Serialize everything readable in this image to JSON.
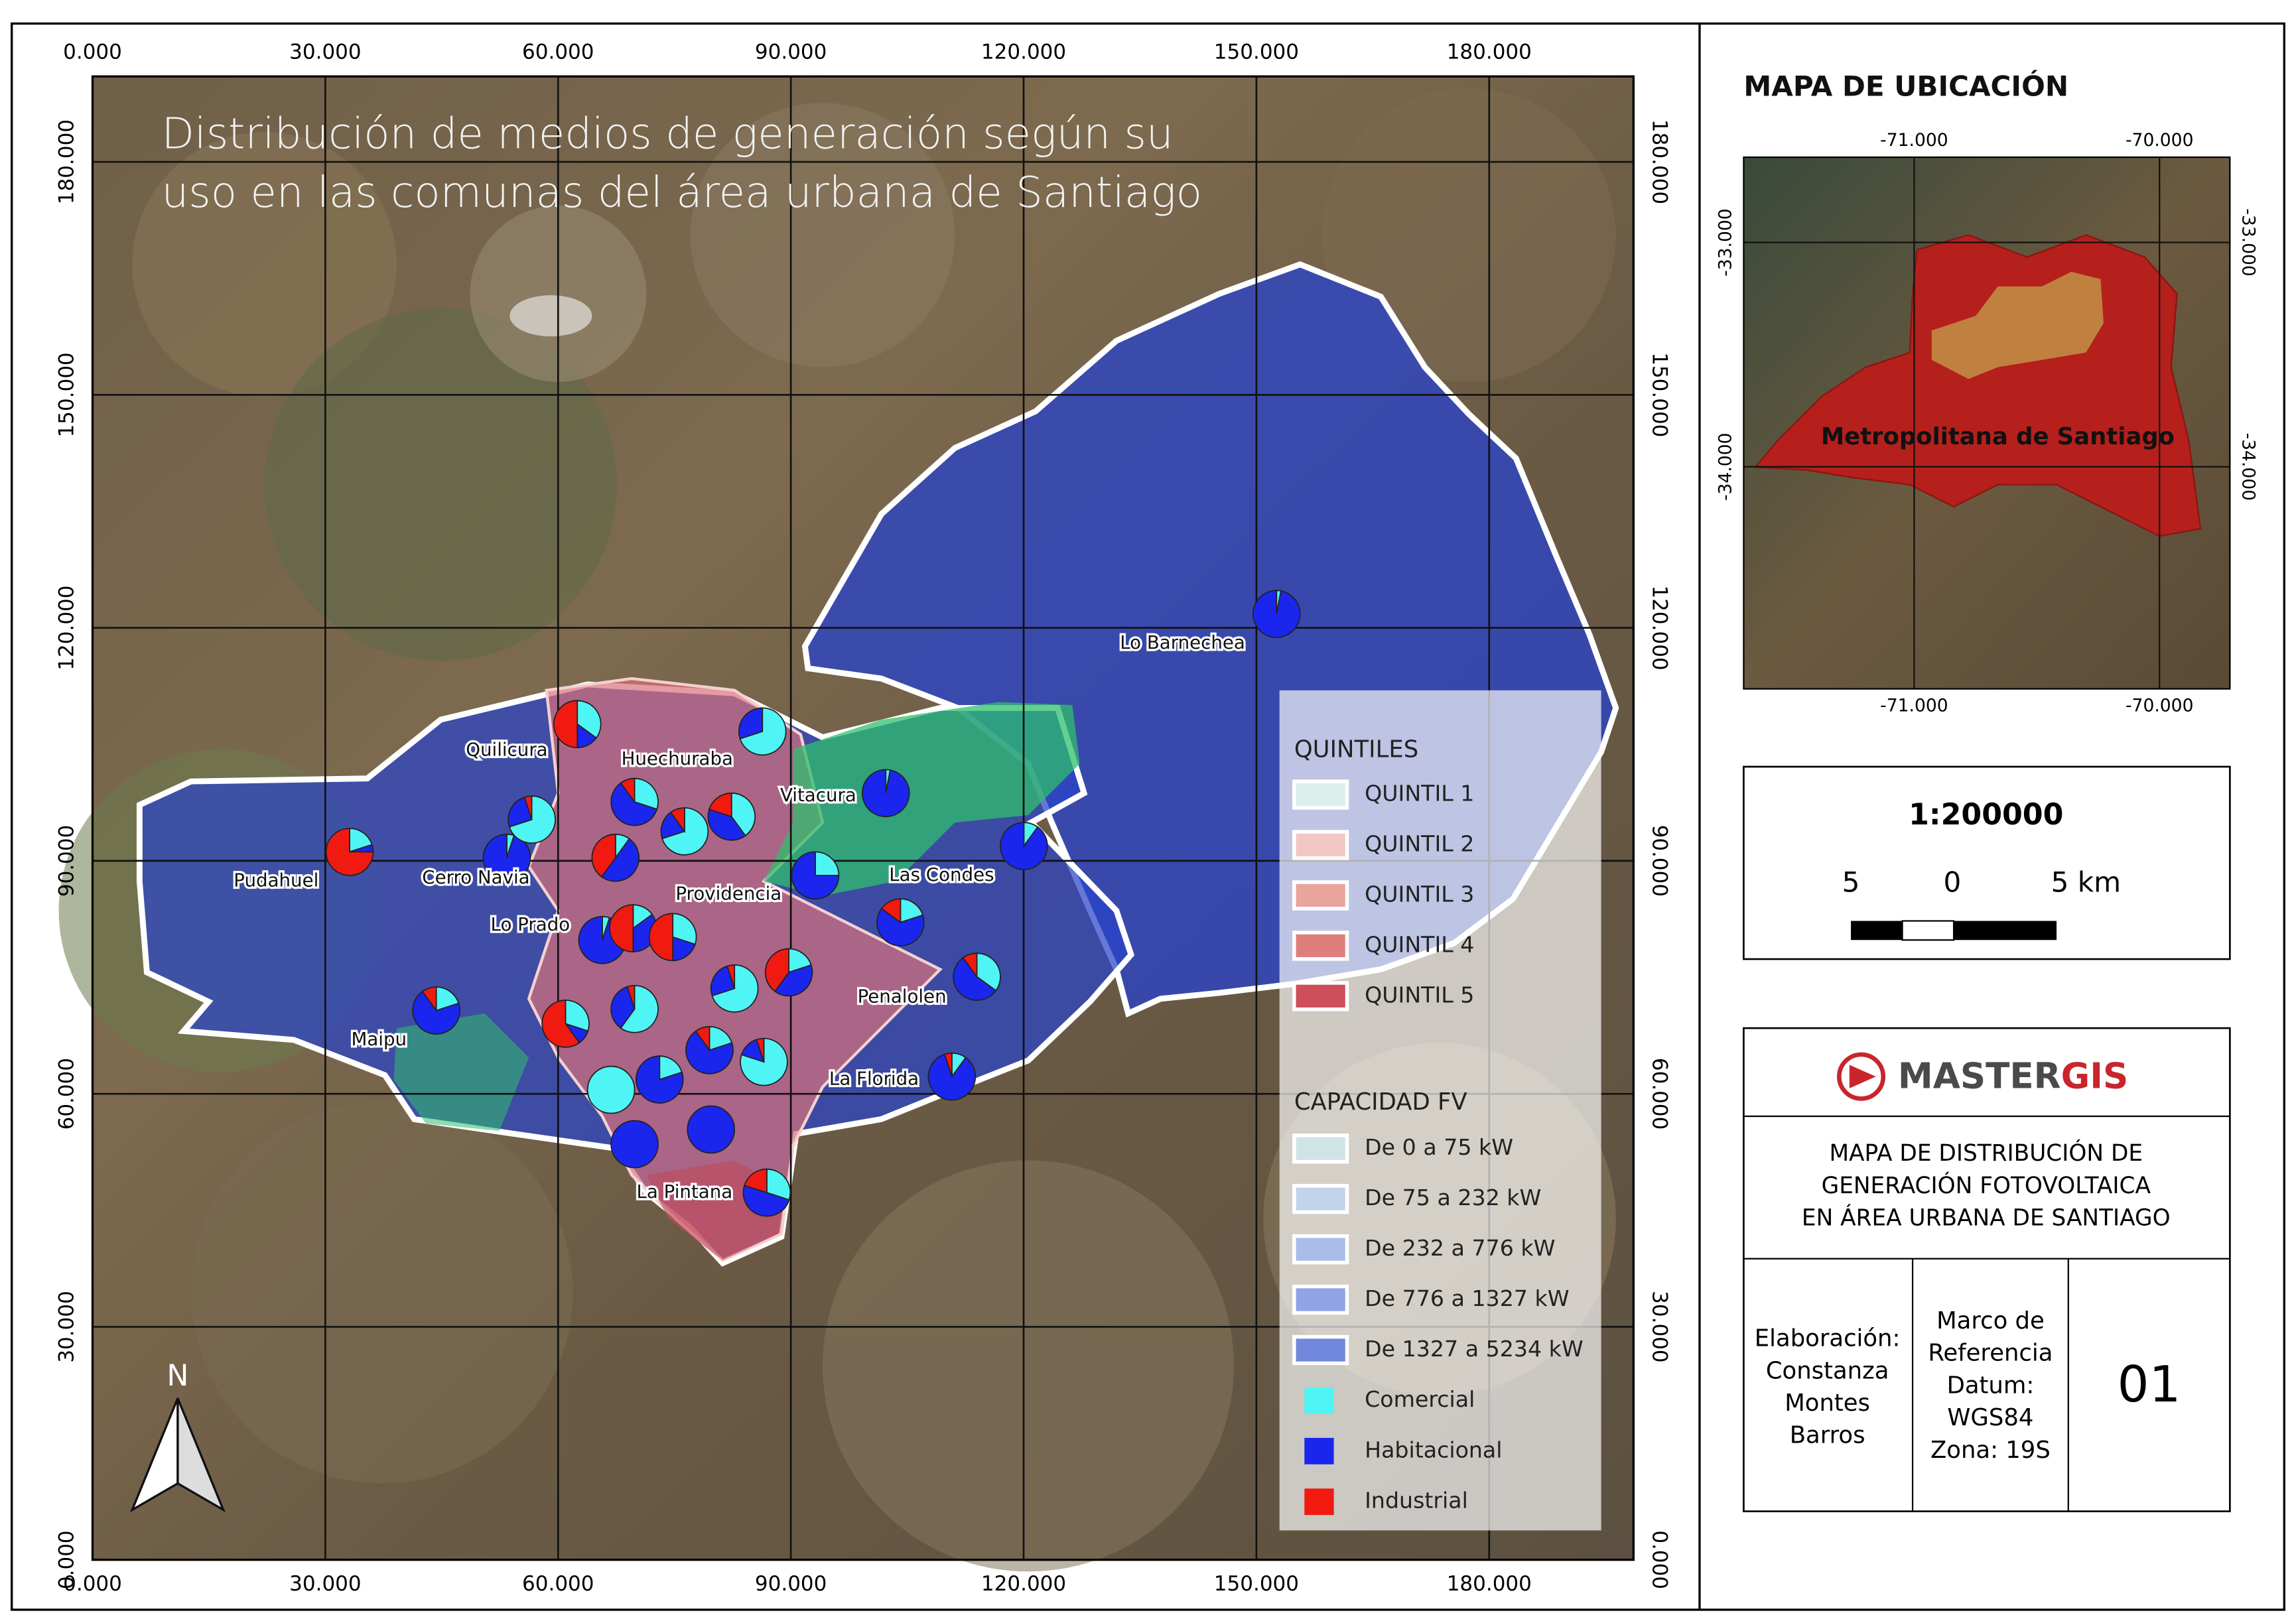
{
  "title_lines": [
    "Distribución de medios de generación según su",
    "uso en las comunas del área urbana de Santiago"
  ],
  "main_map": {
    "xlim": [
      0,
      198600
    ],
    "ylim": [
      0,
      191000
    ],
    "xticks": [
      {
        "value": 0,
        "label": "0.000"
      },
      {
        "value": 30000,
        "label": "30.000"
      },
      {
        "value": 60000,
        "label": "60.000"
      },
      {
        "value": 90000,
        "label": "90.000"
      },
      {
        "value": 120000,
        "label": "120.000"
      },
      {
        "value": 150000,
        "label": "150.000"
      },
      {
        "value": 180000,
        "label": "180.000"
      }
    ],
    "yticks": [
      {
        "value": 0,
        "label": "0.000"
      },
      {
        "value": 30000,
        "label": "30.000"
      },
      {
        "value": 60000,
        "label": "60.000"
      },
      {
        "value": 90000,
        "label": "90.000"
      },
      {
        "value": 120000,
        "label": "120.000"
      },
      {
        "value": 150000,
        "label": "150.000"
      },
      {
        "value": 180000,
        "label": "180.000"
      }
    ],
    "communes": [
      {
        "name": "Lo Barnechea",
        "shares": [
          3,
          97,
          0
        ]
      },
      {
        "name": "Quilicura",
        "shares": [
          35,
          15,
          50
        ]
      },
      {
        "name": "Huechuraba",
        "shares": [
          30,
          60,
          10
        ]
      },
      {
        "name": "Vitacura",
        "shares": [
          3,
          97,
          0
        ]
      },
      {
        "name": "Pudahuel",
        "shares": [
          20,
          5,
          75
        ]
      },
      {
        "name": "Cerro Navia",
        "shares": [
          5,
          95,
          0
        ]
      },
      {
        "name": "Providencia",
        "shares": [
          70,
          20,
          10
        ]
      },
      {
        "name": "Las Condes",
        "shares": [
          25,
          75,
          0
        ]
      },
      {
        "name": "Lo Prado",
        "shares": [
          5,
          95,
          0
        ]
      },
      {
        "name": "Penalolen",
        "shares": [
          20,
          65,
          15
        ]
      },
      {
        "name": "Maipu",
        "shares": [
          20,
          70,
          10
        ]
      },
      {
        "name": "La Florida",
        "shares": [
          10,
          85,
          5
        ]
      },
      {
        "name": "La Pintana",
        "shares": [
          0,
          100,
          0
        ]
      },
      {
        "name": null,
        "shares": [
          70,
          25,
          5
        ]
      },
      {
        "name": null,
        "shares": [
          10,
          50,
          40
        ]
      },
      {
        "name": null,
        "shares": [
          40,
          40,
          20
        ]
      },
      {
        "name": null,
        "shares": [
          70,
          30,
          0
        ]
      },
      {
        "name": null,
        "shares": [
          10,
          90,
          0
        ]
      },
      {
        "name": null,
        "shares": [
          15,
          35,
          50
        ]
      },
      {
        "name": null,
        "shares": [
          30,
          20,
          50
        ]
      },
      {
        "name": null,
        "shares": [
          20,
          40,
          40
        ]
      },
      {
        "name": null,
        "shares": [
          35,
          55,
          10
        ]
      },
      {
        "name": null,
        "shares": [
          60,
          35,
          5
        ]
      },
      {
        "name": null,
        "shares": [
          70,
          25,
          5
        ]
      },
      {
        "name": null,
        "shares": [
          30,
          10,
          60
        ]
      },
      {
        "name": null,
        "shares": [
          20,
          70,
          10
        ]
      },
      {
        "name": null,
        "shares": [
          80,
          15,
          5
        ]
      },
      {
        "name": null,
        "shares": [
          20,
          80,
          0
        ]
      },
      {
        "name": null,
        "shares": [
          100,
          0,
          0
        ]
      },
      {
        "name": null,
        "shares": [
          0,
          100,
          0
        ]
      },
      {
        "name": null,
        "shares": [
          30,
          50,
          20
        ]
      }
    ]
  },
  "north": "N",
  "legend": {
    "quintiles_title": "QUINTILES",
    "quintiles": [
      {
        "label": "QUINTIL 1",
        "color": "#dcefec"
      },
      {
        "label": "QUINTIL 2",
        "color": "#f1c8c4"
      },
      {
        "label": "QUINTIL 3",
        "color": "#e9a49c"
      },
      {
        "label": "QUINTIL 4",
        "color": "#e07e7b"
      },
      {
        "label": "QUINTIL 5",
        "color": "#cc4f5b"
      }
    ],
    "capacity_title": "CAPACIDAD FV",
    "capacity": [
      {
        "label": "De 0 a 75 kW",
        "color": "#d0e4e6"
      },
      {
        "label": "De 75 a 232 kW",
        "color": "#c2d4ea"
      },
      {
        "label": "De 232 a 776 kW",
        "color": "#a9bde8"
      },
      {
        "label": "De 776 a 1327 kW",
        "color": "#8ea4e4"
      },
      {
        "label": "De 1327 a 5234 kW",
        "color": "#7087dc"
      }
    ],
    "uses": [
      {
        "label": "Comercial",
        "color": "#4ff5f5"
      },
      {
        "label": "Habitacional",
        "color": "#1a26ee"
      },
      {
        "label": "Industrial",
        "color": "#f01a10"
      }
    ]
  },
  "location_map": {
    "title": "MAPA DE UBICACIÓN",
    "region": "Metropolitana de Santiago",
    "xlim": [
      -71.695,
      -69.713
    ],
    "ylim": [
      -34.99,
      -32.62
    ],
    "xticks": [
      {
        "value": -71,
        "label": "-71.000"
      },
      {
        "value": -70,
        "label": "-70.000"
      }
    ],
    "yticks": [
      {
        "value": -33,
        "label": "-33.000"
      },
      {
        "value": -34,
        "label": "-34.000"
      }
    ]
  },
  "scale": {
    "ratio": "1:200000",
    "labels": [
      "5",
      "0",
      "5 km"
    ]
  },
  "logo": {
    "part1": "MASTER",
    "part2": "GIS"
  },
  "map_title_lines": [
    "MAPA DE DISTRIBUCIÓN DE",
    "GENERACIÓN FOTOVOLTAICA",
    "EN ÁREA URBANA DE SANTIAGO"
  ],
  "credits": {
    "author": [
      "Elaboración:",
      "Constanza",
      "Montes",
      "Barros"
    ],
    "reference": [
      "Marco de",
      "Referencia",
      "Datum:",
      "WGS84",
      "Zona: 19S"
    ],
    "number": "01"
  }
}
